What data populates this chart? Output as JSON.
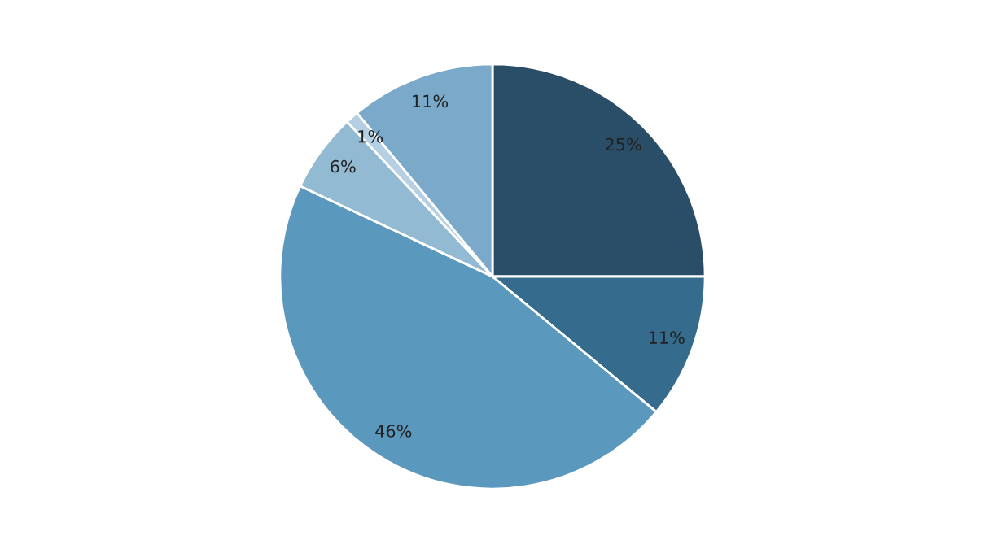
{
  "chart_data": {
    "type": "pie",
    "categories": [
      null,
      null,
      null,
      null,
      null,
      null
    ],
    "values": [
      25,
      11,
      46,
      6,
      1,
      11
    ],
    "colors": [
      "#2a4e67",
      "#356b8c",
      "#5b98bd",
      "#93bad3",
      "#b4d0e2",
      "#7aa9c9"
    ],
    "value_labels": [
      "25%",
      "11%",
      "46%",
      "6%",
      "1%",
      "11%"
    ]
  }
}
